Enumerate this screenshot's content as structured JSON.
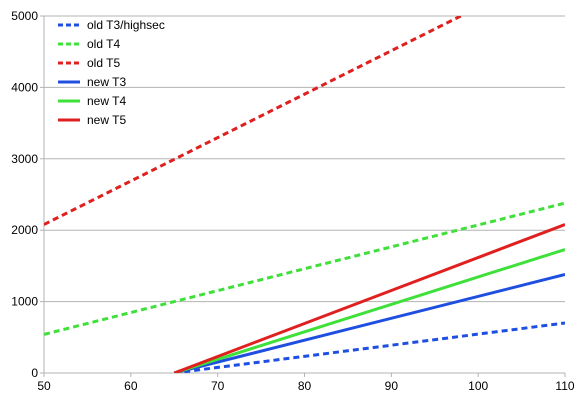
{
  "chart_data": {
    "type": "line",
    "title": "",
    "xlabel": "",
    "ylabel": "",
    "xlim": [
      50,
      110
    ],
    "ylim": [
      0,
      5000
    ],
    "x_ticks": [
      "50",
      "60",
      "70",
      "80",
      "90",
      "100",
      "110"
    ],
    "y_ticks": [
      "0",
      "1000",
      "2000",
      "3000",
      "4000",
      "5000"
    ],
    "grid": "horizontal",
    "legend_position": "top-left",
    "series": [
      {
        "name": "old T3/highsec",
        "style": "dashed",
        "color": "#1f4fe0",
        "x": [
          65,
          110
        ],
        "y": [
          0,
          700
        ]
      },
      {
        "name": "old T4",
        "style": "dashed",
        "color": "#3fe03a",
        "x": [
          50,
          110
        ],
        "y": [
          540,
          2380
        ]
      },
      {
        "name": "old T5",
        "style": "dashed",
        "color": "#e01f1f",
        "x": [
          50,
          98
        ],
        "y": [
          2080,
          5000
        ]
      },
      {
        "name": "new T3",
        "style": "solid",
        "color": "#1f4fe0",
        "x": [
          65,
          110
        ],
        "y": [
          0,
          1380
        ]
      },
      {
        "name": "new T4",
        "style": "solid",
        "color": "#3fe03a",
        "x": [
          65,
          110
        ],
        "y": [
          0,
          1730
        ]
      },
      {
        "name": "new T5",
        "style": "solid",
        "color": "#e01f1f",
        "x": [
          65,
          110
        ],
        "y": [
          0,
          2080
        ]
      }
    ]
  }
}
